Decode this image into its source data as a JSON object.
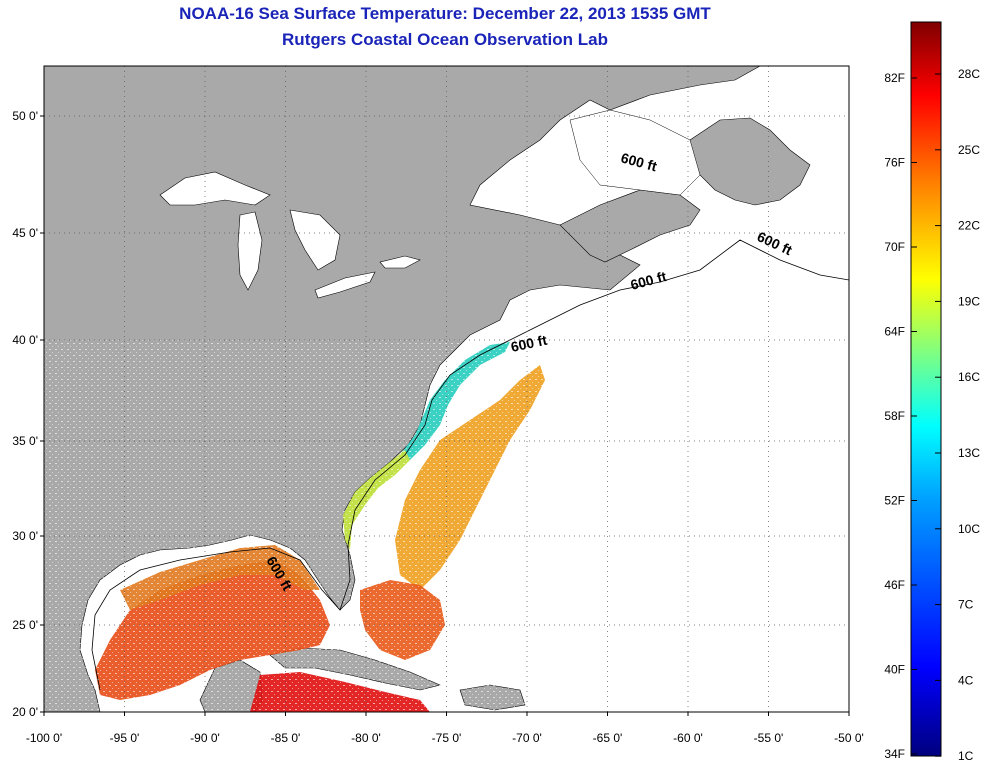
{
  "title": "NOAA-16 Sea Surface Temperature:  December 22, 2013 1535 GMT",
  "subtitle": "Rutgers Coastal Ocean Observation Lab",
  "map": {
    "lon_range": [
      -100,
      -50
    ],
    "lat_range": [
      20,
      52.5
    ],
    "lat_ticks": [
      {
        "value": 20,
        "label": "20 0'"
      },
      {
        "value": 25,
        "label": "25 0'"
      },
      {
        "value": 30,
        "label": "30 0'"
      },
      {
        "value": 35,
        "label": "35 0'"
      },
      {
        "value": 40,
        "label": "40 0'"
      },
      {
        "value": 45,
        "label": "45 0'"
      },
      {
        "value": 50,
        "label": "50 0'"
      }
    ],
    "lon_ticks": [
      {
        "value": -100,
        "label": "-100 0'"
      },
      {
        "value": -95,
        "label": "-95 0'"
      },
      {
        "value": -90,
        "label": "-90 0'"
      },
      {
        "value": -85,
        "label": "-85 0'"
      },
      {
        "value": -80,
        "label": "-80 0'"
      },
      {
        "value": -75,
        "label": "-75 0'"
      },
      {
        "value": -70,
        "label": "-70 0'"
      },
      {
        "value": -65,
        "label": "-65 0'"
      },
      {
        "value": -60,
        "label": "-60 0'"
      },
      {
        "value": -55,
        "label": "-55 0'"
      },
      {
        "value": -50,
        "label": "-50 0'"
      }
    ],
    "contour_label": "600 ft",
    "land_color": "#a9a9a9",
    "ocean_color": "#ffffff",
    "grid": true
  },
  "colorbar": {
    "fahrenheit_labels": [
      "82F",
      "76F",
      "70F",
      "64F",
      "58F",
      "52F",
      "46F",
      "40F",
      "34F"
    ],
    "celsius_labels": [
      "28C",
      "25C",
      "22C",
      "19C",
      "16C",
      "13C",
      "10C",
      "7C",
      "4C",
      "1C"
    ],
    "colors": [
      "#00007f",
      "#0000ff",
      "#0080ff",
      "#00ffff",
      "#80ff80",
      "#ffff00",
      "#ff8000",
      "#ff0000",
      "#7f0000"
    ]
  }
}
